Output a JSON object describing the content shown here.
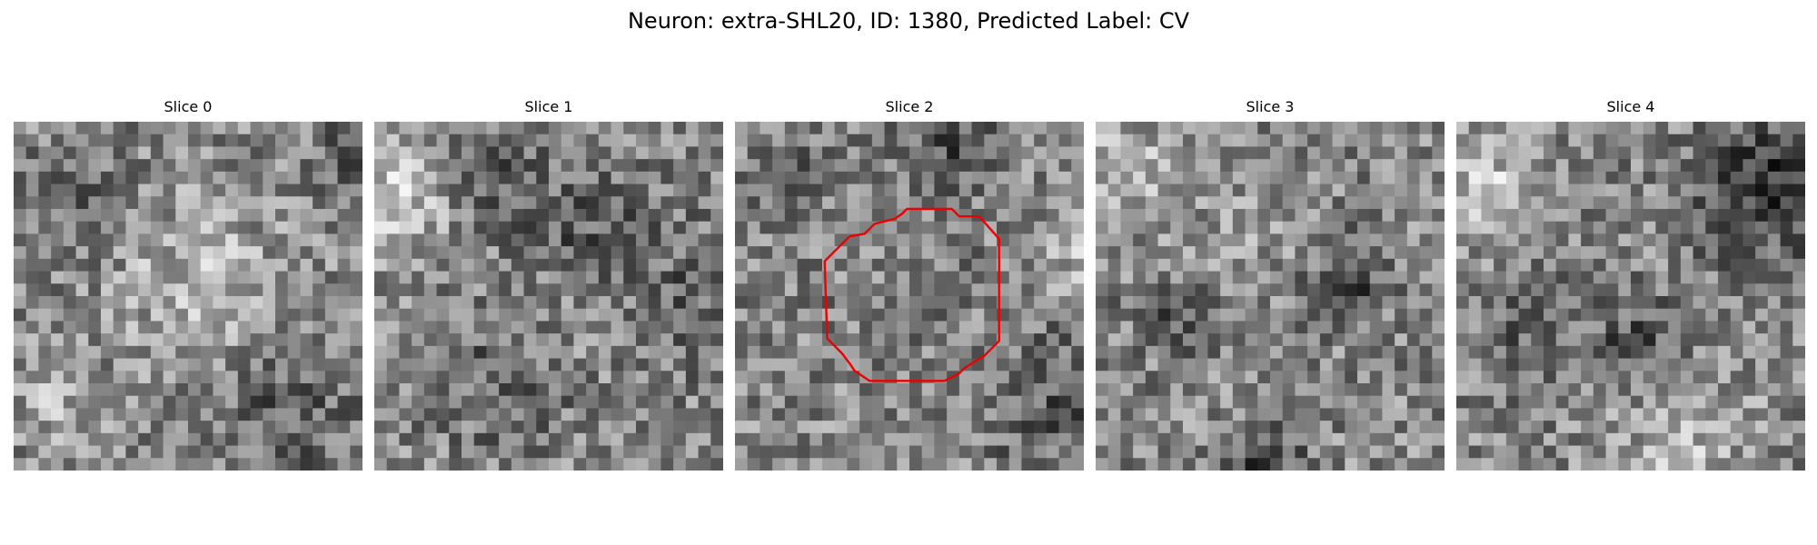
{
  "figure": {
    "title": "Neuron: extra-SHL20, ID: 1380, Predicted Label: CV"
  },
  "panels": [
    {
      "title": "Slice 0",
      "has_contour": false
    },
    {
      "title": "Slice 1",
      "has_contour": false
    },
    {
      "title": "Slice 2",
      "has_contour": true
    },
    {
      "title": "Slice 3",
      "has_contour": false
    },
    {
      "title": "Slice 4",
      "has_contour": false
    }
  ],
  "colors": {
    "contour": "#ee0000",
    "colormap": "grayscale"
  },
  "image_grid": {
    "cells": 28
  }
}
